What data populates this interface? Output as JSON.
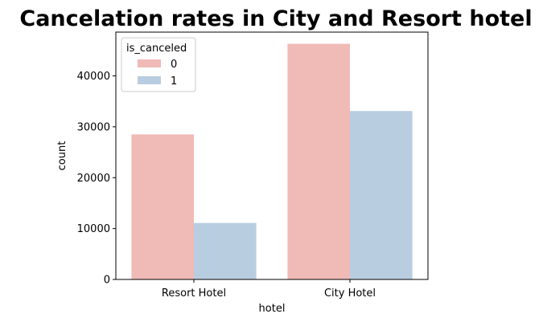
{
  "chart_data": {
    "type": "bar",
    "title": "Cancelation rates in City and Resort hotel",
    "xlabel": "hotel",
    "ylabel": "count",
    "categories": [
      "Resort Hotel",
      "City Hotel"
    ],
    "series": [
      {
        "name": "0",
        "values": [
          28500,
          46300
        ],
        "color": "#f0bab7"
      },
      {
        "name": "1",
        "values": [
          11100,
          33100
        ],
        "color": "#b9cde0"
      }
    ],
    "ylim": [
      0,
      48600
    ],
    "yticks": [
      0,
      10000,
      20000,
      30000,
      40000
    ],
    "grid": false,
    "legend": {
      "title": "is_canceled",
      "placement": "top-left"
    }
  }
}
